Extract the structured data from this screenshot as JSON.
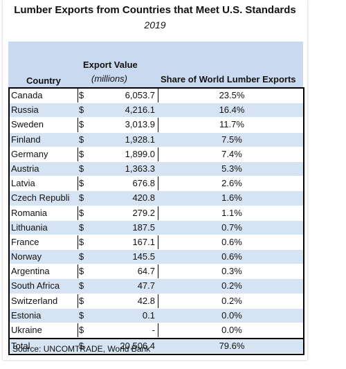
{
  "title": "Lumber Exports from Countries that Meet U.S. Standards",
  "subtitle": "2019",
  "header": {
    "country": "Country",
    "export_value": "Export Value",
    "export_unit": "(millions)",
    "share": "Share of World Lumber Exports"
  },
  "rows": [
    {
      "country": "Canada",
      "dollar": "$",
      "value": "6,053.7",
      "share": "23.5%"
    },
    {
      "country": "Russia",
      "dollar": "$",
      "value": "4,216.1",
      "share": "16.4%"
    },
    {
      "country": "Sweden",
      "dollar": "$",
      "value": "3,013.9",
      "share": "11.7%"
    },
    {
      "country": "Finland",
      "dollar": "$",
      "value": "1,928.1",
      "share": "7.5%"
    },
    {
      "country": "Germany",
      "dollar": "$",
      "value": "1,899.0",
      "share": "7.4%"
    },
    {
      "country": "Austria",
      "dollar": "$",
      "value": "1,363.3",
      "share": "5.3%"
    },
    {
      "country": "Latvia",
      "dollar": "$",
      "value": "676.8",
      "share": "2.6%"
    },
    {
      "country": "Czech Republi",
      "dollar": "$",
      "value": "420.8",
      "share": "1.6%"
    },
    {
      "country": "Romania",
      "dollar": "$",
      "value": "279.2",
      "share": "1.1%"
    },
    {
      "country": "Lithuania",
      "dollar": "$",
      "value": "187.5",
      "share": "0.7%"
    },
    {
      "country": "France",
      "dollar": "$",
      "value": "167.1",
      "share": "0.6%"
    },
    {
      "country": "Norway",
      "dollar": "$",
      "value": "145.5",
      "share": "0.6%"
    },
    {
      "country": "Argentina",
      "dollar": "$",
      "value": "64.7",
      "share": "0.3%"
    },
    {
      "country": "South Africa",
      "dollar": "$",
      "value": "47.7",
      "share": "0.2%"
    },
    {
      "country": "Switzerland",
      "dollar": "$",
      "value": "42.8",
      "share": "0.2%"
    },
    {
      "country": "Estonia",
      "dollar": "$",
      "value": "0.1",
      "share": "0.0%"
    },
    {
      "country": "Ukraine",
      "dollar": "$",
      "value": "-",
      "share": "0.0%"
    }
  ],
  "total": {
    "country": "Total",
    "dollar": "$",
    "value": "20,506.4",
    "share": "79.6%"
  },
  "source": "Source: UNCOMTRADE, World Bank",
  "colors": {
    "header_bg": "#c9d9ef",
    "alt_row_bg": "#d6e3f3"
  }
}
